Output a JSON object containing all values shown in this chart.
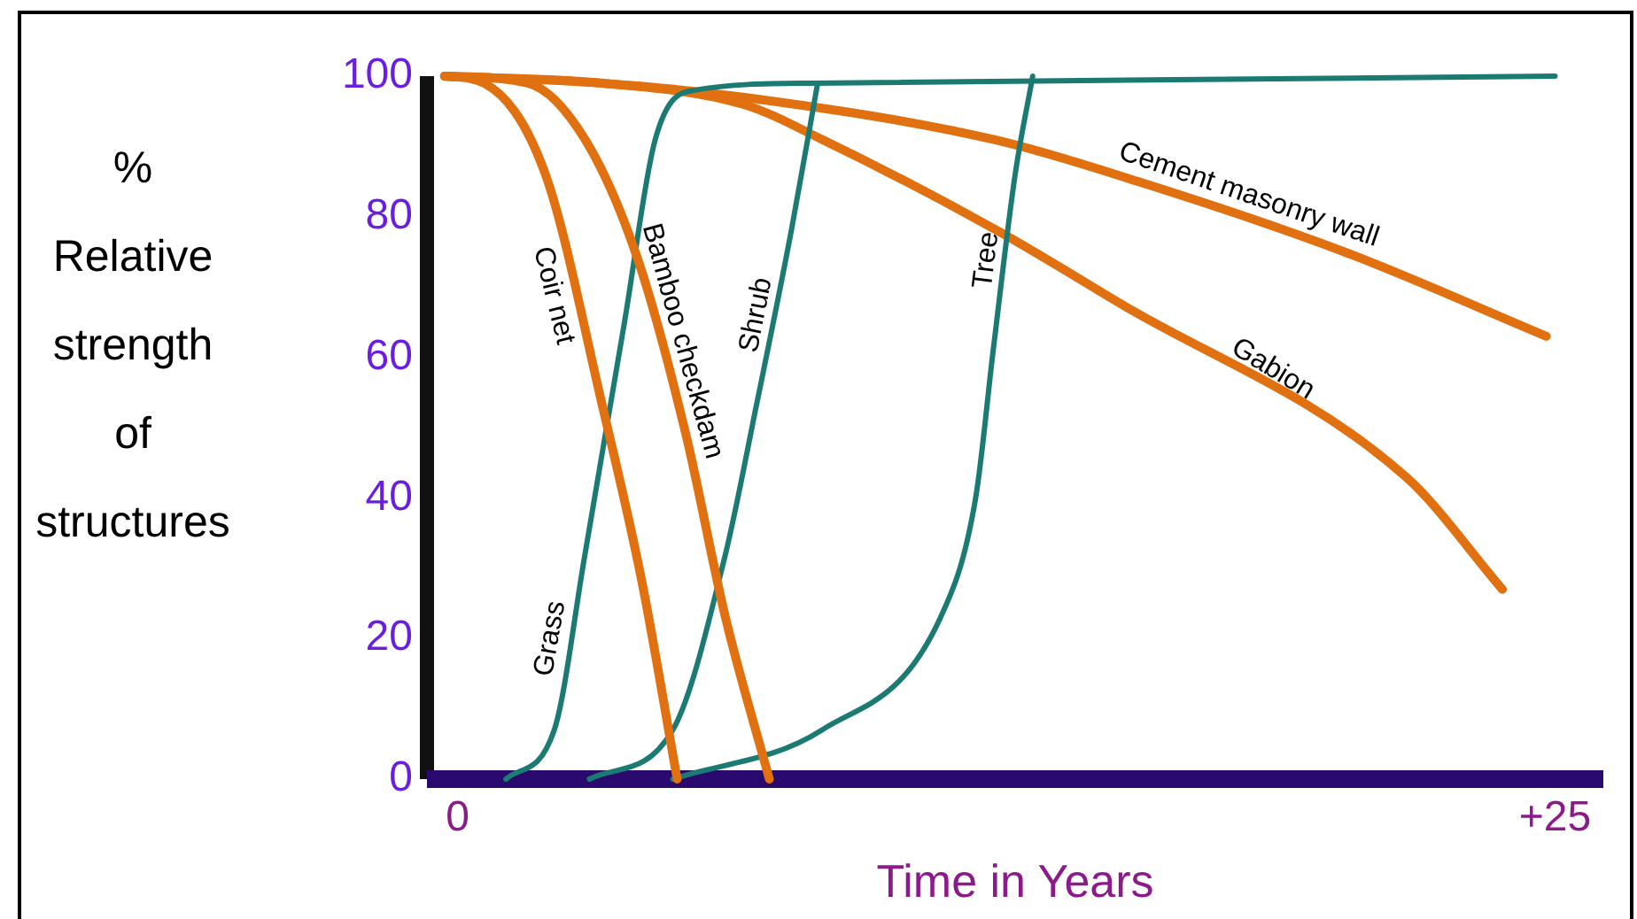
{
  "chart_data": {
    "type": "line",
    "xlabel": "Time in Years",
    "ylabel": "% Relative strength of structures",
    "xlim": [
      -0.7,
      26.1
    ],
    "ylim": [
      0,
      100
    ],
    "xticks": [
      0,
      {
        "value": 25,
        "label": "+25"
      }
    ],
    "yticks": [
      0,
      20,
      40,
      60,
      80,
      100
    ],
    "grid": false,
    "legend": false,
    "marker": "none",
    "line_style": "solid",
    "series": [
      {
        "name": "Coir net",
        "color": "#e07010",
        "x": [
          -0.3,
          0.6,
          2.0,
          3.3,
          4.2,
          5.0
        ],
        "values": [
          100,
          99,
          86,
          53,
          28,
          0
        ]
      },
      {
        "name": "Bamboo checkdam",
        "color": "#e07010",
        "x": [
          -0.3,
          1.6,
          2.9,
          4.1,
          5.2,
          6.1,
          7.1
        ],
        "values": [
          100,
          99,
          91,
          74,
          49,
          23,
          0
        ]
      },
      {
        "name": "Grass",
        "color": "#1b7a72",
        "x": [
          1.1,
          2.2,
          2.9,
          3.8,
          4.5,
          5.4,
          8.1,
          25
        ],
        "values": [
          0,
          7,
          32,
          65,
          91,
          98,
          99,
          100
        ]
      },
      {
        "name": "Shrub",
        "color": "#1b7a72",
        "x": [
          3.0,
          4.9,
          6.1,
          6.8,
          7.6,
          8.2
        ],
        "values": [
          0,
          7,
          32,
          53,
          78,
          99
        ]
      },
      {
        "name": "Tree",
        "color": "#1b7a72",
        "x": [
          4.9,
          8.3,
          11.0,
          11.8,
          12.2,
          12.7,
          13.1
        ],
        "values": [
          0,
          7,
          23,
          40,
          61,
          86,
          100
        ]
      },
      {
        "name": "Cement masonry wall",
        "color": "#e07010",
        "x": [
          -0.3,
          3.3,
          6.5,
          12.2,
          15.5,
          20.2,
          24.8
        ],
        "values": [
          100,
          99,
          97,
          91,
          85,
          75,
          63
        ]
      },
      {
        "name": "Gabion",
        "color": "#e07010",
        "x": [
          -0.3,
          3.3,
          6.5,
          8.3,
          12.3,
          15.0,
          21.6,
          23.8
        ],
        "values": [
          100,
          99,
          96,
          91,
          78,
          68,
          43,
          27
        ]
      }
    ]
  }
}
